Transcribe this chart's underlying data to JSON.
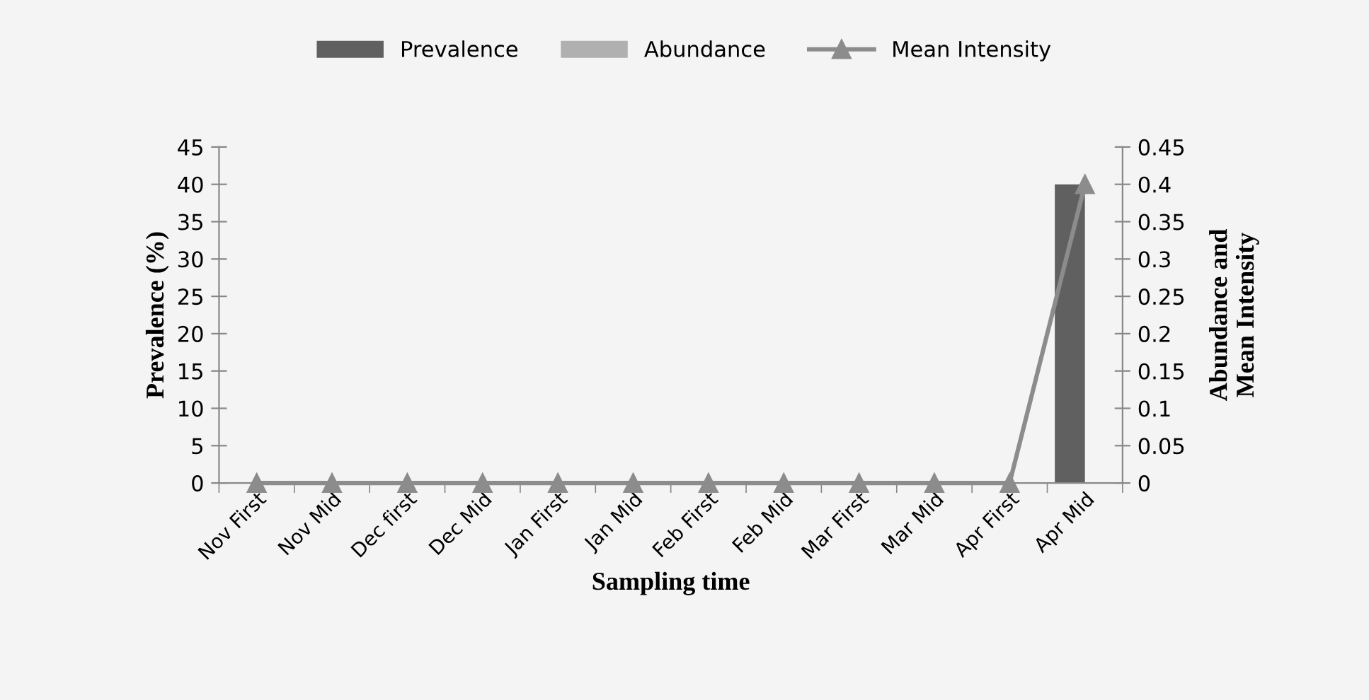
{
  "chart_data": {
    "type": "bar",
    "xlabel": "Sampling time",
    "ylabel": "Prevalence (%)",
    "y2label": "Abundance and\nMean Intensity",
    "categories": [
      "Nov First",
      "Nov Mid",
      "Dec first",
      "Dec Mid",
      "Jan First",
      "Jan Mid",
      "Feb First",
      "Feb Mid",
      "Mar First",
      "Mar Mid",
      "Apr First",
      "Apr Mid"
    ],
    "series": [
      {
        "name": "Prevalence",
        "color": "#606060",
        "values": [
          0,
          0,
          0,
          0,
          0,
          0,
          0,
          0,
          0,
          0,
          0,
          40
        ]
      },
      {
        "name": "Abundance",
        "color": "#b0b0b0",
        "axis": "y2",
        "values": [
          0,
          0,
          0,
          0,
          0,
          0,
          0,
          0,
          0,
          0,
          0,
          0
        ]
      },
      {
        "name": "Mean Intensity",
        "type": "line",
        "color": "#8c8c8c",
        "axis": "y2",
        "marker": "triangle",
        "values": [
          0,
          0,
          0,
          0,
          0,
          0,
          0,
          0,
          0,
          0,
          0,
          0.4
        ]
      }
    ],
    "ylim": [
      0,
      45
    ],
    "yticks": [
      0,
      5,
      10,
      15,
      20,
      25,
      30,
      35,
      40,
      45
    ],
    "y2lim": [
      0,
      0.45
    ],
    "y2ticks": [
      0,
      0.05,
      0.1,
      0.15,
      0.2,
      0.25,
      0.3,
      0.35,
      0.4,
      0.45
    ],
    "legend": "top",
    "grid": false
  }
}
